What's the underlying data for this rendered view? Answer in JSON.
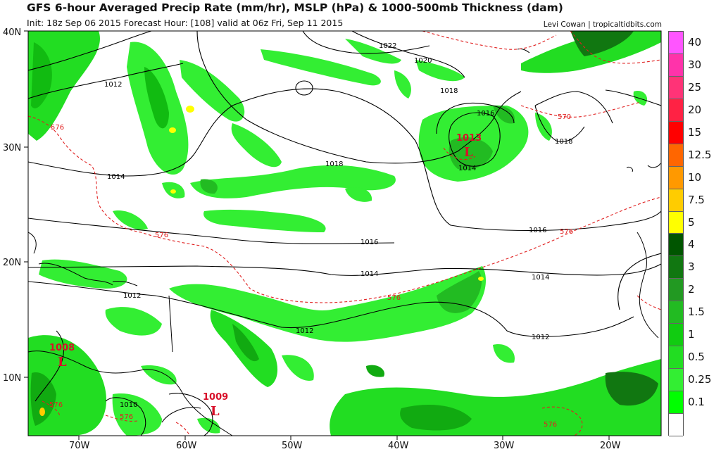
{
  "header": {
    "title": "GFS 6-hour Averaged Precip Rate (mm/hr), MSLP (hPa) & 1000-500mb Thickness (dam)",
    "subtitle": "Init: 18z Sep 06 2015   Forecast Hour: [108]   valid at 06z Fri, Sep 11 2015",
    "credit": "Levi Cowan | tropicaltidbits.com"
  },
  "axes": {
    "lat_labels": [
      "40N",
      "30N",
      "20N",
      "10N"
    ],
    "lon_labels": [
      "70W",
      "60W",
      "50W",
      "40W",
      "30W",
      "20W"
    ]
  },
  "isobars": [
    {
      "label": "1022"
    },
    {
      "label": "1020"
    },
    {
      "label": "1018"
    },
    {
      "label": "1018"
    },
    {
      "label": "1018"
    },
    {
      "label": "1016"
    },
    {
      "label": "1016"
    },
    {
      "label": "1016"
    },
    {
      "label": "1014"
    },
    {
      "label": "1014"
    },
    {
      "label": "1014"
    },
    {
      "label": "1014"
    },
    {
      "label": "1012"
    },
    {
      "label": "1012"
    },
    {
      "label": "1012"
    },
    {
      "label": "1012"
    },
    {
      "label": "1010"
    }
  ],
  "thickness_labels": [
    "576",
    "576",
    "576",
    "576",
    "576",
    "570",
    "576",
    "576"
  ],
  "lows": [
    {
      "symbol": "L",
      "value": "1013"
    },
    {
      "symbol": "L",
      "value": "1008"
    },
    {
      "symbol": "L",
      "value": "1009"
    }
  ],
  "legend": [
    {
      "label": "40",
      "color": "#ff55ff"
    },
    {
      "label": "30",
      "color": "#ff33aa"
    },
    {
      "label": "25",
      "color": "#ff3377"
    },
    {
      "label": "20",
      "color": "#ff2244"
    },
    {
      "label": "15",
      "color": "#ff0000"
    },
    {
      "label": "12.5",
      "color": "#ff6600"
    },
    {
      "label": "10",
      "color": "#ff9900"
    },
    {
      "label": "7.5",
      "color": "#ffcc00"
    },
    {
      "label": "5",
      "color": "#ffff00"
    },
    {
      "label": "4",
      "color": "#005500"
    },
    {
      "label": "3",
      "color": "#117711"
    },
    {
      "label": "2",
      "color": "#229922"
    },
    {
      "label": "1.5",
      "color": "#22bb22"
    },
    {
      "label": "1",
      "color": "#11cc11"
    },
    {
      "label": "0.5",
      "color": "#22dd22"
    },
    {
      "label": "0.25",
      "color": "#33ee33"
    },
    {
      "label": "0.1",
      "color": "#00ff00"
    },
    {
      "label": "",
      "color": "#ffffff"
    }
  ]
}
